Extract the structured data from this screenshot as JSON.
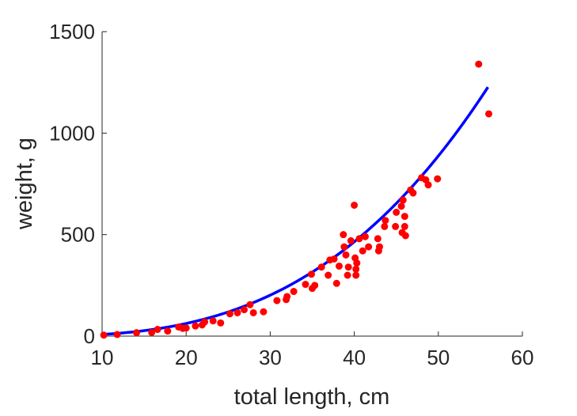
{
  "chart_data": {
    "type": "scatter",
    "title": "",
    "xlabel": "total length, cm",
    "ylabel": "weight, g",
    "xlim": [
      10,
      60
    ],
    "ylim": [
      0,
      1500
    ],
    "xticks": [
      10,
      20,
      30,
      40,
      50,
      60
    ],
    "yticks": [
      0,
      500,
      1000,
      1500
    ],
    "grid": false,
    "legend": "none",
    "colors": {
      "points": "#ff0000",
      "fit_line": "#0000ff",
      "axis": "#262626"
    },
    "series": [
      {
        "type": "scatter",
        "points": [
          [
            10.2,
            5
          ],
          [
            11.8,
            8
          ],
          [
            14.1,
            17
          ],
          [
            15.9,
            18
          ],
          [
            16.6,
            33
          ],
          [
            17.8,
            25
          ],
          [
            19.1,
            45
          ],
          [
            19.6,
            38
          ],
          [
            20.0,
            40
          ],
          [
            21.1,
            50
          ],
          [
            21.9,
            55
          ],
          [
            22.2,
            70
          ],
          [
            23.2,
            75
          ],
          [
            24.1,
            65
          ],
          [
            25.2,
            110
          ],
          [
            26.1,
            115
          ],
          [
            26.9,
            130
          ],
          [
            27.6,
            155
          ],
          [
            28.0,
            115
          ],
          [
            29.2,
            120
          ],
          [
            30.8,
            175
          ],
          [
            31.9,
            180
          ],
          [
            32.0,
            195
          ],
          [
            32.8,
            220
          ],
          [
            34.2,
            255
          ],
          [
            34.9,
            305
          ],
          [
            35.0,
            235
          ],
          [
            35.3,
            250
          ],
          [
            36.1,
            340
          ],
          [
            36.9,
            300
          ],
          [
            37.1,
            375
          ],
          [
            37.6,
            380
          ],
          [
            37.9,
            260
          ],
          [
            38.2,
            345
          ],
          [
            38.7,
            500
          ],
          [
            38.8,
            440
          ],
          [
            39.0,
            400
          ],
          [
            39.2,
            300
          ],
          [
            39.3,
            340
          ],
          [
            39.6,
            470
          ],
          [
            40.0,
            645
          ],
          [
            40.1,
            385
          ],
          [
            40.2,
            300
          ],
          [
            40.2,
            330
          ],
          [
            40.3,
            360
          ],
          [
            40.6,
            480
          ],
          [
            41.0,
            420
          ],
          [
            41.3,
            490
          ],
          [
            41.7,
            440
          ],
          [
            42.8,
            480
          ],
          [
            42.9,
            420
          ],
          [
            43.0,
            440
          ],
          [
            43.6,
            540
          ],
          [
            43.7,
            570
          ],
          [
            44.9,
            540
          ],
          [
            45.0,
            610
          ],
          [
            45.6,
            640
          ],
          [
            45.7,
            510
          ],
          [
            45.8,
            670
          ],
          [
            46.0,
            590
          ],
          [
            46.0,
            540
          ],
          [
            46.1,
            495
          ],
          [
            46.7,
            720
          ],
          [
            47.0,
            705
          ],
          [
            48.0,
            780
          ],
          [
            48.5,
            770
          ],
          [
            48.8,
            745
          ],
          [
            49.9,
            775
          ],
          [
            54.8,
            1340
          ],
          [
            56.0,
            1095
          ]
        ]
      },
      {
        "type": "line",
        "model": "power",
        "coef": 0.0105,
        "exponent": 2.9,
        "x_range": [
          10,
          55.9
        ]
      }
    ]
  }
}
